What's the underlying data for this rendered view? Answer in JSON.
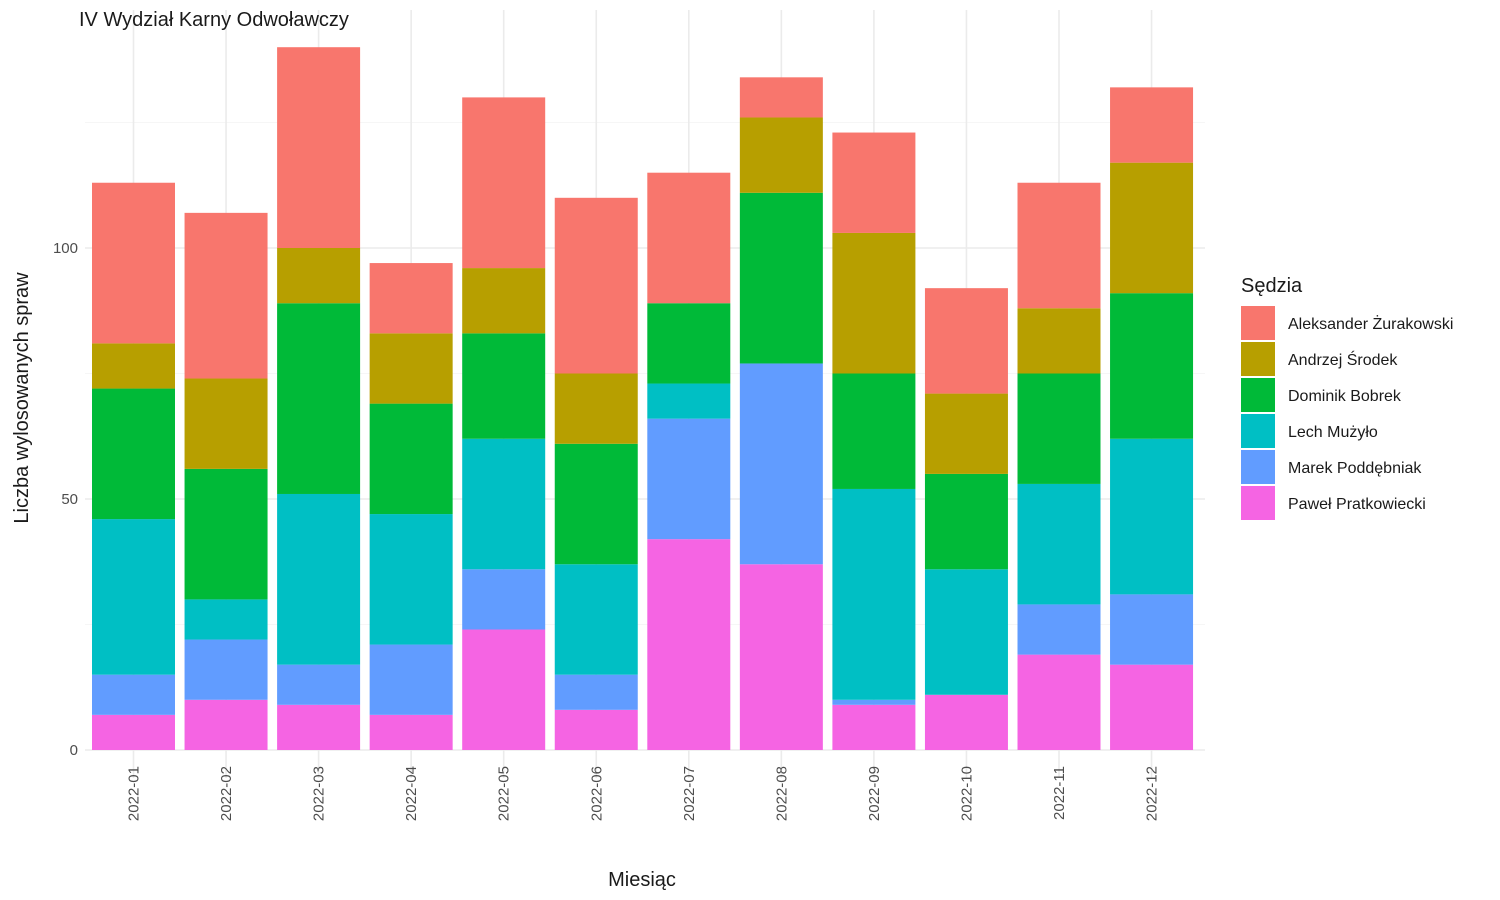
{
  "chart_data": {
    "type": "bar",
    "stacked": true,
    "title": "IV Wydział Karny Odwoławczy",
    "xlabel": "Miesiąc",
    "ylabel": "Liczba wylosowanych spraw",
    "ylim": [
      0,
      147
    ],
    "yticks": [
      0,
      50,
      100
    ],
    "categories": [
      "2022-01",
      "2022-02",
      "2022-03",
      "2022-04",
      "2022-05",
      "2022-06",
      "2022-07",
      "2022-08",
      "2022-09",
      "2022-10",
      "2022-11",
      "2022-12"
    ],
    "legend": {
      "title": "Sędzia",
      "position": "right"
    },
    "series": [
      {
        "name": "Paweł Pratkowiecki",
        "color": "#F564E3",
        "values": [
          7,
          10,
          9,
          7,
          24,
          8,
          42,
          37,
          9,
          11,
          19,
          17
        ]
      },
      {
        "name": "Marek Poddębniak",
        "color": "#619CFF",
        "values": [
          8,
          12,
          8,
          14,
          12,
          7,
          24,
          40,
          1,
          0,
          10,
          14
        ]
      },
      {
        "name": "Lech Mużyło",
        "color": "#00BFC4",
        "values": [
          31,
          8,
          34,
          26,
          26,
          22,
          7,
          0,
          42,
          25,
          24,
          31
        ]
      },
      {
        "name": "Dominik Bobrek",
        "color": "#00BA38",
        "values": [
          26,
          26,
          38,
          22,
          21,
          24,
          16,
          34,
          23,
          19,
          22,
          29
        ]
      },
      {
        "name": "Andrzej Środek",
        "color": "#B79F00",
        "values": [
          9,
          18,
          11,
          14,
          13,
          14,
          0,
          15,
          28,
          16,
          13,
          26
        ]
      },
      {
        "name": "Aleksander Żurakowski",
        "color": "#F8766D",
        "values": [
          32,
          33,
          40,
          14,
          34,
          35,
          26,
          8,
          20,
          21,
          25,
          15
        ]
      }
    ]
  }
}
